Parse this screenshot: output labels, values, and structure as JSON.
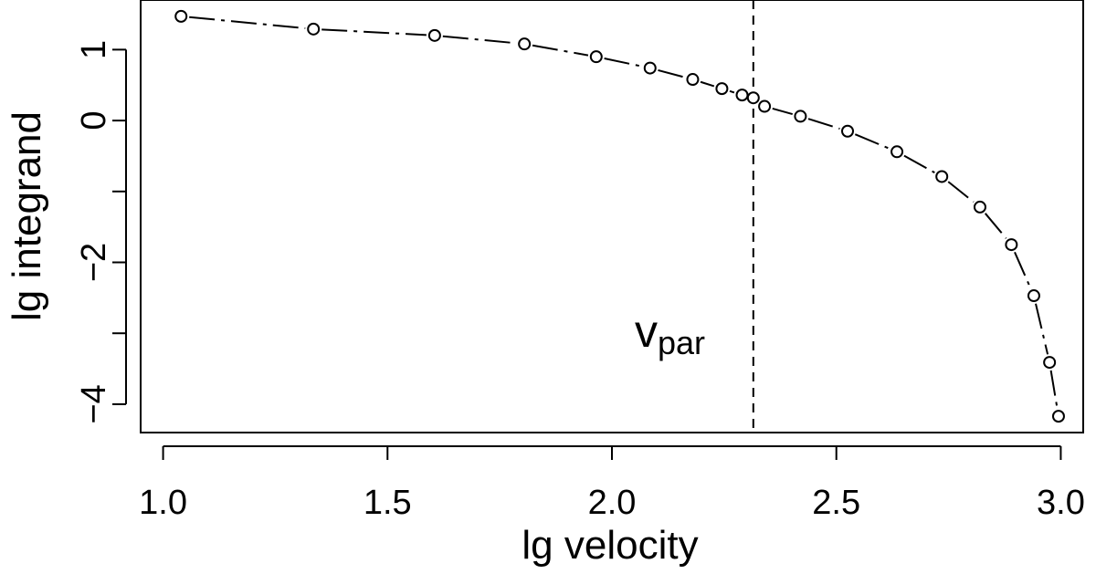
{
  "chart_data": {
    "type": "line",
    "title": "",
    "xlabel": "lg velocity",
    "ylabel": "lg integrand",
    "xlim": [
      0.95,
      3.05
    ],
    "ylim": [
      -4.4,
      1.7
    ],
    "x_ticks": [
      1.0,
      1.5,
      2.0,
      2.5,
      3.0
    ],
    "x_tick_labels": [
      "1.0",
      "1.5",
      "2.0",
      "2.5",
      "3.0"
    ],
    "y_ticks": [
      -4,
      -3,
      -2,
      -1,
      0,
      1
    ],
    "y_tick_labels": [
      "−4",
      "",
      "−2",
      "",
      "0",
      "1"
    ],
    "grid": false,
    "line_style": "long-dash / dot-dash",
    "marker": "open-circle",
    "series": [
      {
        "name": "integrand",
        "x": [
          1.04,
          1.335,
          1.605,
          1.805,
          1.965,
          2.085,
          2.18,
          2.245,
          2.29,
          2.315,
          2.34,
          2.42,
          2.525,
          2.635,
          2.735,
          2.82,
          2.89,
          2.94,
          2.975,
          2.995
        ],
        "y": [
          1.47,
          1.29,
          1.2,
          1.08,
          0.9,
          0.74,
          0.58,
          0.45,
          0.36,
          0.32,
          0.2,
          0.06,
          -0.15,
          -0.44,
          -0.79,
          -1.22,
          -1.75,
          -2.47,
          -3.41,
          -4.17
        ]
      }
    ],
    "vline": {
      "x": 2.315,
      "style": "dashed",
      "label_main": "v",
      "label_sub": "par"
    }
  }
}
